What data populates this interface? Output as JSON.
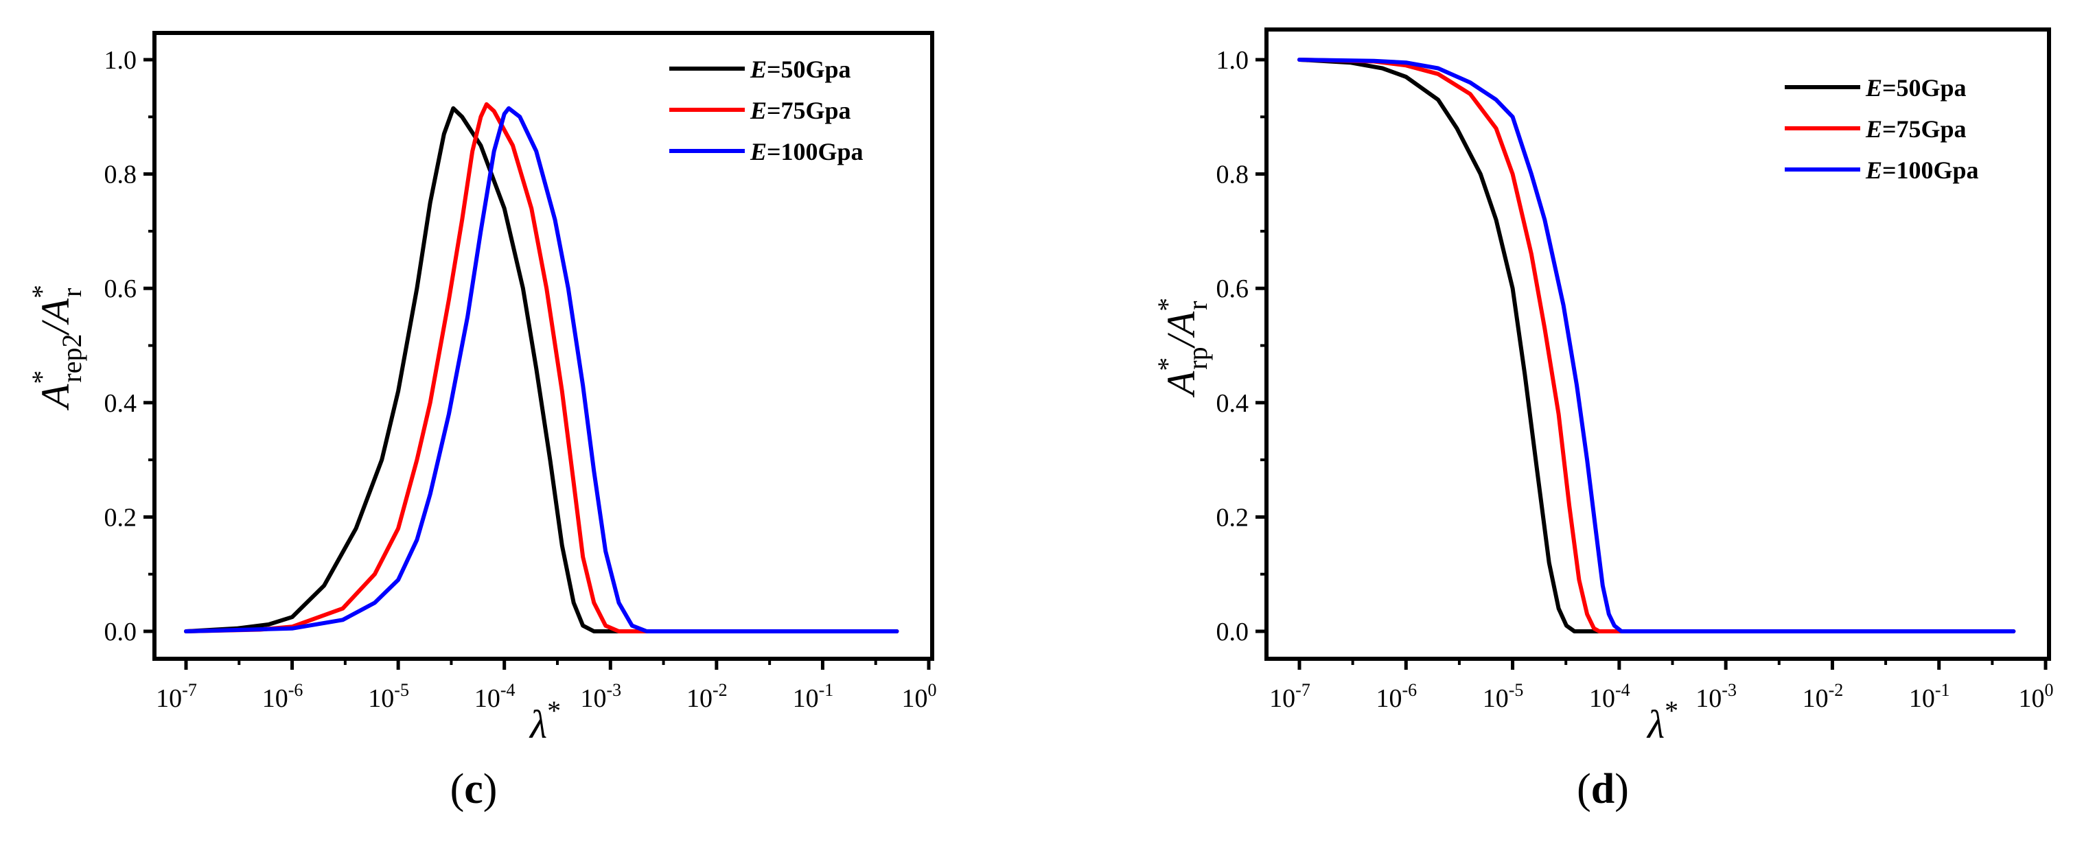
{
  "colors": {
    "E50": "#000000",
    "E75": "#ff0000",
    "E100": "#0000ff"
  },
  "panels": [
    {
      "panel_label": {
        "open": "(",
        "letter": "c",
        "close": ")"
      },
      "ytitle": {
        "main": "A",
        "sup": "*",
        "sub": "rep2",
        "slash": "/",
        "main2": "A",
        "sup2": "*",
        "sub2": "r"
      },
      "xtitle": {
        "main": "λ",
        "sup": "*"
      },
      "legend": [
        {
          "italic": "E",
          "rest": "=50Gpa"
        },
        {
          "italic": "E",
          "rest": "=75Gpa"
        },
        {
          "italic": "E",
          "rest": "=100Gpa"
        }
      ],
      "yticks": [
        "0.0",
        "0.2",
        "0.4",
        "0.6",
        "0.8",
        "1.0"
      ],
      "xticks": [
        {
          "base": "10",
          "exp": "-7"
        },
        {
          "base": "10",
          "exp": "-6"
        },
        {
          "base": "10",
          "exp": "-5"
        },
        {
          "base": "10",
          "exp": "-4"
        },
        {
          "base": "10",
          "exp": "-3"
        },
        {
          "base": "10",
          "exp": "-2"
        },
        {
          "base": "10",
          "exp": "-1"
        },
        {
          "base": "10",
          "exp": "0"
        }
      ]
    },
    {
      "panel_label": {
        "open": "(",
        "letter": "d",
        "close": ")"
      },
      "ytitle": {
        "main": "A",
        "sup": "*",
        "sub": "rp",
        "slash": "/",
        "main2": "A",
        "sup2": "*",
        "sub2": "r"
      },
      "xtitle": {
        "main": "λ",
        "sup": "*"
      },
      "legend": [
        {
          "italic": "E",
          "rest": "=50Gpa"
        },
        {
          "italic": "E",
          "rest": "=75Gpa"
        },
        {
          "italic": "E",
          "rest": "=100Gpa"
        }
      ],
      "yticks": [
        "0.0",
        "0.2",
        "0.4",
        "0.6",
        "0.8",
        "1.0"
      ],
      "xticks": [
        {
          "base": "10",
          "exp": "-7"
        },
        {
          "base": "10",
          "exp": "-6"
        },
        {
          "base": "10",
          "exp": "-5"
        },
        {
          "base": "10",
          "exp": "-4"
        },
        {
          "base": "10",
          "exp": "-3"
        },
        {
          "base": "10",
          "exp": "-2"
        },
        {
          "base": "10",
          "exp": "-1"
        },
        {
          "base": "10",
          "exp": "0"
        }
      ]
    }
  ],
  "chart_data": [
    {
      "type": "line",
      "title": "(c)",
      "xscale": "log",
      "xlim": [
        1e-07,
        1
      ],
      "ylim": [
        -0.05,
        1.05
      ],
      "grid": false,
      "legend_position": "top-right",
      "series": [
        {
          "name": "E=50Gpa",
          "color": "#000000",
          "points": [
            [
              1e-07,
              0.0
            ],
            [
              3e-07,
              0.005
            ],
            [
              6e-07,
              0.012
            ],
            [
              1e-06,
              0.025
            ],
            [
              2e-06,
              0.08
            ],
            [
              4e-06,
              0.18
            ],
            [
              7e-06,
              0.3
            ],
            [
              1e-05,
              0.42
            ],
            [
              1.5e-05,
              0.6
            ],
            [
              2e-05,
              0.75
            ],
            [
              2.7e-05,
              0.87
            ],
            [
              3.3e-05,
              0.915
            ],
            [
              4e-05,
              0.9
            ],
            [
              6e-05,
              0.85
            ],
            [
              0.0001,
              0.74
            ],
            [
              0.00015,
              0.6
            ],
            [
              0.0002,
              0.46
            ],
            [
              0.00027,
              0.3
            ],
            [
              0.00035,
              0.15
            ],
            [
              0.00045,
              0.05
            ],
            [
              0.00055,
              0.01
            ],
            [
              0.0007,
              0.0
            ],
            [
              0.001,
              0.0
            ],
            [
              0.01,
              0.0
            ],
            [
              0.1,
              0.0
            ],
            [
              0.5,
              0.0
            ]
          ]
        },
        {
          "name": "E=75Gpa",
          "color": "#ff0000",
          "points": [
            [
              1e-07,
              0.0
            ],
            [
              5e-07,
              0.003
            ],
            [
              1e-06,
              0.008
            ],
            [
              3e-06,
              0.04
            ],
            [
              6e-06,
              0.1
            ],
            [
              1e-05,
              0.18
            ],
            [
              1.5e-05,
              0.3
            ],
            [
              2e-05,
              0.4
            ],
            [
              3e-05,
              0.58
            ],
            [
              4e-05,
              0.72
            ],
            [
              5e-05,
              0.84
            ],
            [
              6e-05,
              0.9
            ],
            [
              6.8e-05,
              0.922
            ],
            [
              8e-05,
              0.91
            ],
            [
              0.00012,
              0.85
            ],
            [
              0.00018,
              0.74
            ],
            [
              0.00025,
              0.6
            ],
            [
              0.00035,
              0.42
            ],
            [
              0.00045,
              0.26
            ],
            [
              0.00055,
              0.13
            ],
            [
              0.0007,
              0.05
            ],
            [
              0.0009,
              0.01
            ],
            [
              0.0012,
              0.0
            ],
            [
              0.01,
              0.0
            ],
            [
              0.1,
              0.0
            ],
            [
              0.5,
              0.0
            ]
          ]
        },
        {
          "name": "E=100Gpa",
          "color": "#0000ff",
          "points": [
            [
              1e-07,
              0.0
            ],
            [
              1e-06,
              0.005
            ],
            [
              3e-06,
              0.02
            ],
            [
              6e-06,
              0.05
            ],
            [
              1e-05,
              0.09
            ],
            [
              1.5e-05,
              0.16
            ],
            [
              2e-05,
              0.24
            ],
            [
              3e-05,
              0.38
            ],
            [
              4.5e-05,
              0.55
            ],
            [
              6e-05,
              0.7
            ],
            [
              8e-05,
              0.84
            ],
            [
              0.0001,
              0.905
            ],
            [
              0.00011,
              0.915
            ],
            [
              0.00014,
              0.9
            ],
            [
              0.0002,
              0.84
            ],
            [
              0.0003,
              0.72
            ],
            [
              0.0004,
              0.6
            ],
            [
              0.00055,
              0.43
            ],
            [
              0.0007,
              0.28
            ],
            [
              0.0009,
              0.14
            ],
            [
              0.0012,
              0.05
            ],
            [
              0.0016,
              0.01
            ],
            [
              0.0022,
              0.0
            ],
            [
              0.01,
              0.0
            ],
            [
              0.1,
              0.0
            ],
            [
              0.5,
              0.0
            ]
          ]
        }
      ]
    },
    {
      "type": "line",
      "title": "(d)",
      "xscale": "log",
      "xlim": [
        1e-07,
        1
      ],
      "ylim": [
        -0.05,
        1.05
      ],
      "grid": false,
      "legend_position": "top-right",
      "series": [
        {
          "name": "E=50Gpa",
          "color": "#000000",
          "points": [
            [
              1e-07,
              1.0
            ],
            [
              3e-07,
              0.995
            ],
            [
              6e-07,
              0.985
            ],
            [
              1e-06,
              0.97
            ],
            [
              2e-06,
              0.93
            ],
            [
              3e-06,
              0.88
            ],
            [
              5e-06,
              0.8
            ],
            [
              7e-06,
              0.72
            ],
            [
              1e-05,
              0.6
            ],
            [
              1.3e-05,
              0.45
            ],
            [
              1.7e-05,
              0.28
            ],
            [
              2.2e-05,
              0.12
            ],
            [
              2.7e-05,
              0.04
            ],
            [
              3.2e-05,
              0.01
            ],
            [
              3.8e-05,
              0.0
            ],
            [
              0.0001,
              0.0
            ],
            [
              0.001,
              0.0
            ],
            [
              0.01,
              0.0
            ],
            [
              0.1,
              0.0
            ],
            [
              0.5,
              0.0
            ]
          ]
        },
        {
          "name": "E=75Gpa",
          "color": "#ff0000",
          "points": [
            [
              1e-07,
              1.0
            ],
            [
              5e-07,
              0.997
            ],
            [
              1e-06,
              0.99
            ],
            [
              2e-06,
              0.975
            ],
            [
              4e-06,
              0.94
            ],
            [
              7e-06,
              0.88
            ],
            [
              1e-05,
              0.8
            ],
            [
              1.5e-05,
              0.66
            ],
            [
              2e-05,
              0.53
            ],
            [
              2.7e-05,
              0.38
            ],
            [
              3.4e-05,
              0.22
            ],
            [
              4.2e-05,
              0.09
            ],
            [
              5e-05,
              0.03
            ],
            [
              5.8e-05,
              0.005
            ],
            [
              6.5e-05,
              0.0
            ],
            [
              0.0001,
              0.0
            ],
            [
              0.001,
              0.0
            ],
            [
              0.01,
              0.0
            ],
            [
              0.1,
              0.0
            ],
            [
              0.5,
              0.0
            ]
          ]
        },
        {
          "name": "E=100Gpa",
          "color": "#0000ff",
          "points": [
            [
              1e-07,
              1.0
            ],
            [
              5e-07,
              0.998
            ],
            [
              1e-06,
              0.995
            ],
            [
              2e-06,
              0.985
            ],
            [
              4e-06,
              0.96
            ],
            [
              7e-06,
              0.93
            ],
            [
              1e-05,
              0.9
            ],
            [
              1.5e-05,
              0.8
            ],
            [
              2e-05,
              0.72
            ],
            [
              3e-05,
              0.57
            ],
            [
              4e-05,
              0.43
            ],
            [
              5e-05,
              0.3
            ],
            [
              6e-05,
              0.18
            ],
            [
              7e-05,
              0.08
            ],
            [
              8e-05,
              0.03
            ],
            [
              9e-05,
              0.01
            ],
            [
              0.000105,
              0.0
            ],
            [
              0.001,
              0.0
            ],
            [
              0.01,
              0.0
            ],
            [
              0.1,
              0.0
            ],
            [
              0.5,
              0.0
            ]
          ]
        }
      ]
    }
  ]
}
